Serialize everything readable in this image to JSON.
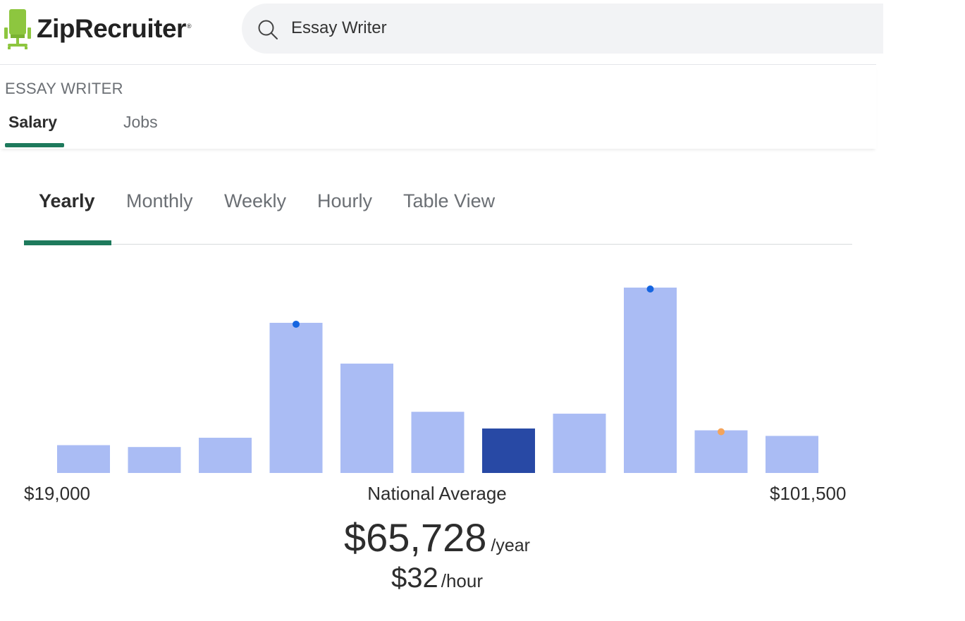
{
  "header": {
    "logo_text": "ZipRecruiter",
    "logo_mark": "®",
    "logo_icon": "chair-icon",
    "search": {
      "value": "Essay Writer",
      "icon": "search-icon"
    }
  },
  "page": {
    "breadcrumb": "ESSAY WRITER",
    "tabs": [
      {
        "label": "Salary",
        "active": true
      },
      {
        "label": "Jobs",
        "active": false
      }
    ],
    "period_tabs": [
      {
        "label": "Yearly",
        "active": true
      },
      {
        "label": "Monthly",
        "active": false
      },
      {
        "label": "Weekly",
        "active": false
      },
      {
        "label": "Hourly",
        "active": false
      },
      {
        "label": "Table View",
        "active": false
      }
    ]
  },
  "chart_data": {
    "type": "bar",
    "title": "",
    "x_min_label": "$19,000",
    "x_max_label": "$101,500",
    "center_label": "National Average",
    "values": [
      0.15,
      0.14,
      0.19,
      0.81,
      0.59,
      0.33,
      0.24,
      0.32,
      1.0,
      0.23,
      0.2
    ],
    "highlighted_index": 6,
    "markers": [
      {
        "bar_index": 3,
        "color": "#1565e0"
      },
      {
        "bar_index": 8,
        "color": "#1565e0"
      },
      {
        "bar_index": 9,
        "color": "#f4a45c"
      }
    ],
    "colors": {
      "bar": "#aabcf4",
      "highlight": "#2849a5"
    }
  },
  "summary": {
    "yearly_value": "$65,728",
    "yearly_unit": "/year",
    "hourly_value": "$32",
    "hourly_unit": "/hour"
  },
  "colors": {
    "accent": "#1e7a5c",
    "logo": "#8dc63f"
  }
}
